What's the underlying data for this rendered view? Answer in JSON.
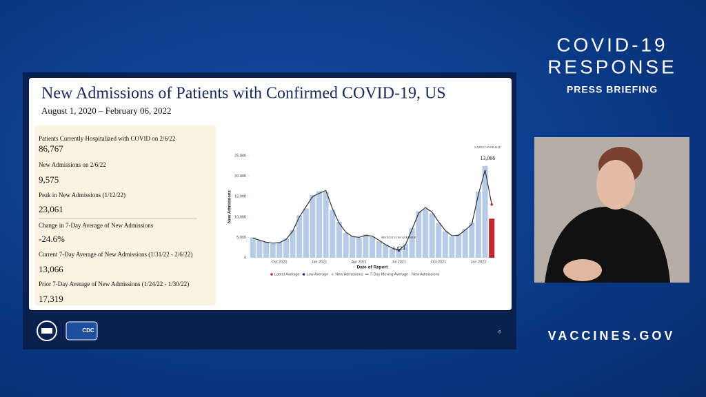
{
  "branding": {
    "line1": "COVID-19",
    "line2": "RESPONSE",
    "line3": "PRESS BRIEFING",
    "website": "VACCINES.GOV",
    "cdc_logo": "CDC"
  },
  "slide": {
    "title": "New Admissions of Patients with Confirmed COVID-19, US",
    "subtitle": "August 1, 2020 – February 06, 2022",
    "page_number": "6",
    "stats": [
      {
        "label": "Patients Currently Hospitalized with COVID on 2/6/22",
        "value": "86,767"
      },
      {
        "label": "New Admissions on 2/6/22",
        "value": "9,575"
      },
      {
        "label": "Peak in New Admissions (1/12/22)",
        "value": "23,061"
      },
      {
        "label": "Change in 7-Day Average of New Admissions",
        "value": "-24.6%"
      },
      {
        "label": "Current 7-Day Average of New Admissions (1/31/22 - 2/6/22)",
        "value": "13,066"
      },
      {
        "label": "Prior 7-Day Average of New Admissions (1/24/22 - 1/30/22)",
        "value": "17,319"
      }
    ]
  },
  "chart_data": {
    "type": "line",
    "x_label": "Date of Report",
    "y_label": "New Admissions",
    "categories": [
      null,
      null,
      null,
      null,
      "Oct 2020",
      null,
      null,
      null,
      null,
      null,
      "Jan 2021",
      null,
      null,
      null,
      null,
      null,
      "Apr 2021",
      null,
      null,
      null,
      null,
      null,
      "Jul 2021",
      null,
      null,
      null,
      null,
      null,
      "Oct 2021",
      null,
      null,
      null,
      null,
      null,
      "Jan 2022",
      null,
      null
    ],
    "ylim": [
      0,
      25000
    ],
    "yticks": [
      0,
      {
        "value": 5000,
        "label": "5,000"
      },
      {
        "value": 10000,
        "label": "10,000"
      },
      {
        "value": 15000,
        "label": "15,000"
      },
      {
        "value": 20000,
        "label": "20,000"
      },
      {
        "value": 25000,
        "label": "25,000"
      }
    ],
    "series": [
      {
        "name": "Latest Average",
        "type": "scatter",
        "color": "#c0282d",
        "annotation": "LATEST AVERAGE",
        "values": [
          null,
          null,
          null,
          null,
          null,
          null,
          null,
          null,
          null,
          null,
          null,
          null,
          null,
          null,
          null,
          null,
          null,
          null,
          null,
          null,
          null,
          null,
          null,
          null,
          null,
          null,
          null,
          null,
          null,
          null,
          null,
          null,
          null,
          null,
          null,
          null,
          13066
        ],
        "value_labels": [
          null,
          null,
          null,
          null,
          null,
          null,
          null,
          null,
          null,
          null,
          null,
          null,
          null,
          null,
          null,
          null,
          null,
          null,
          null,
          null,
          null,
          null,
          null,
          null,
          null,
          null,
          null,
          null,
          null,
          null,
          null,
          null,
          null,
          null,
          null,
          null,
          "13,066"
        ]
      },
      {
        "name": "Low Average",
        "type": "scatter",
        "color": "#1f2f6e",
        "annotation": "RECENT LOW AVERAGE",
        "values": [
          null,
          null,
          null,
          null,
          null,
          null,
          null,
          null,
          null,
          null,
          null,
          null,
          null,
          null,
          null,
          null,
          null,
          null,
          null,
          null,
          null,
          null,
          1823,
          null,
          null,
          null,
          null,
          null,
          null,
          null,
          null,
          null,
          null,
          null,
          null,
          null,
          null
        ],
        "value_labels": [
          null,
          null,
          null,
          null,
          null,
          null,
          null,
          null,
          null,
          null,
          null,
          null,
          null,
          null,
          null,
          null,
          null,
          null,
          null,
          null,
          null,
          null,
          "1,823",
          null,
          null,
          null,
          null,
          null,
          null,
          null,
          null,
          null,
          null,
          null,
          null,
          null,
          null
        ]
      },
      {
        "name": "New Admissions",
        "type": "bar",
        "color": "#b7cbe6",
        "values": [
          5000,
          4200,
          3900,
          3500,
          3800,
          4700,
          6800,
          10400,
          12100,
          15400,
          16300,
          16100,
          11700,
          8800,
          6100,
          5300,
          4900,
          5700,
          5100,
          4100,
          3300,
          2300,
          2000,
          3400,
          7300,
          11400,
          12000,
          10900,
          8500,
          6500,
          5200,
          5700,
          7100,
          8600,
          16200,
          22500,
          9575
        ]
      },
      {
        "name": "7-Day Moving Average - New Admissions",
        "type": "line",
        "color": "#333333",
        "values": [
          4800,
          4300,
          3800,
          3600,
          3700,
          4500,
          6500,
          10000,
          12500,
          15000,
          15800,
          16500,
          12000,
          8500,
          6300,
          5200,
          5000,
          5500,
          5300,
          4300,
          3200,
          2400,
          1823,
          3200,
          7000,
          11000,
          12300,
          11200,
          8800,
          6700,
          5400,
          5500,
          6800,
          8200,
          15500,
          21500,
          13066
        ]
      }
    ]
  }
}
